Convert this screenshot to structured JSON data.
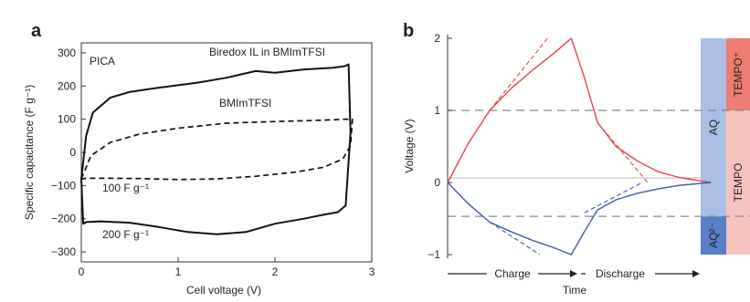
{
  "chart_data": [
    {
      "panel": "a",
      "type": "line",
      "xlabel": "Cell voltage (V)",
      "ylabel": "Specific capacitance (F g⁻¹)",
      "xlim": [
        0,
        3
      ],
      "ylim": [
        -330,
        330
      ],
      "xticks": [
        "0",
        "1",
        "2",
        "3"
      ],
      "yticks": [
        "300",
        "200",
        "100",
        "0",
        "−100",
        "−200",
        "−300"
      ],
      "yticks_values": [
        300,
        200,
        100,
        0,
        -100,
        -200,
        -300
      ],
      "annotations": [
        "PICA",
        "Biredox IL in BMImTFSI",
        "BMImTFSI",
        "100 F g⁻¹",
        "200 F g⁻¹"
      ],
      "series": [
        {
          "name": "Biredox IL in BMImTFSI",
          "style": "solid",
          "x": [
            0.0,
            0.05,
            0.12,
            0.3,
            0.5,
            0.8,
            1.2,
            1.5,
            1.8,
            2.0,
            2.3,
            2.6,
            2.72,
            2.76,
            2.78,
            2.73,
            2.65,
            2.5,
            2.3,
            2.0,
            1.7,
            1.4,
            1.1,
            0.8,
            0.5,
            0.2,
            0.05,
            0.02,
            0.0
          ],
          "y": [
            -80,
            50,
            120,
            165,
            182,
            195,
            210,
            225,
            245,
            240,
            250,
            255,
            260,
            265,
            60,
            -160,
            -180,
            -188,
            -200,
            -215,
            -240,
            -247,
            -240,
            -225,
            -212,
            -208,
            -210,
            -215,
            -80
          ]
        },
        {
          "name": "BMImTFSI",
          "style": "dashed",
          "x": [
            0.0,
            0.1,
            0.3,
            0.6,
            1.0,
            1.5,
            2.0,
            2.5,
            2.75,
            2.8,
            2.78,
            2.7,
            2.5,
            2.2,
            1.8,
            1.4,
            1.0,
            0.6,
            0.3,
            0.05,
            0.0
          ],
          "y": [
            -80,
            -10,
            30,
            55,
            73,
            88,
            93,
            97,
            100,
            100,
            20,
            -20,
            -45,
            -60,
            -72,
            -80,
            -82,
            -79,
            -78,
            -78,
            -80
          ]
        }
      ]
    },
    {
      "panel": "b",
      "type": "line",
      "xlabel": "Time",
      "ylabel": "Voltage (V)",
      "ylim": [
        -1.05,
        2.05
      ],
      "yticks": [
        "2",
        "1",
        "0",
        "−1"
      ],
      "yticks_values": [
        2,
        1,
        0,
        -1
      ],
      "phase_labels": [
        "Charge",
        "Discharge"
      ],
      "t": [
        0,
        0.08,
        0.16,
        0.24,
        0.32,
        0.4,
        0.47,
        0.52,
        0.57,
        0.64,
        0.72,
        0.8,
        0.88,
        1.0
      ],
      "series": [
        {
          "name": "positive",
          "color": "#e8424e",
          "style": "solid",
          "y": [
            0,
            0.55,
            1.0,
            1.3,
            1.55,
            1.78,
            2.0,
            1.45,
            0.83,
            0.5,
            0.3,
            0.15,
            0.07,
            0
          ]
        },
        {
          "name": "negative",
          "color": "#3f5ba9",
          "style": "solid",
          "y": [
            0,
            -0.3,
            -0.55,
            -0.68,
            -0.8,
            -0.9,
            -1.0,
            -0.68,
            -0.38,
            -0.24,
            -0.15,
            -0.09,
            -0.04,
            0
          ]
        },
        {
          "name": "positive-dashed-charge",
          "color": "#e8424e",
          "style": "dashed",
          "t": [
            0.16,
            0.38
          ],
          "y": [
            1.0,
            2.0
          ]
        },
        {
          "name": "positive-dashed-discharge",
          "color": "#e8424e",
          "style": "dashed",
          "t": [
            0.57,
            0.76
          ],
          "y": [
            0.83,
            0.0
          ]
        },
        {
          "name": "negative-dashed-charge",
          "color": "#3f5ba9",
          "style": "dashed",
          "t": [
            0.16,
            0.35
          ],
          "y": [
            -0.55,
            -1.0
          ]
        },
        {
          "name": "negative-dashed-discharge",
          "color": "#3f5ba9",
          "style": "dashed",
          "t": [
            0.52,
            0.74
          ],
          "y": [
            -0.42,
            0.0
          ]
        }
      ],
      "reference_lines": [
        1.0,
        -0.47
      ],
      "redox_bands": [
        {
          "label": "AQ",
          "y_range": [
            -0.47,
            2.0
          ],
          "color": "#a9bfe4"
        },
        {
          "label": "AQ²⁻",
          "y_range": [
            -1.0,
            -0.47
          ],
          "color": "#5a7fc7"
        },
        {
          "label": "TEMPO⁺",
          "y_range": [
            1.0,
            2.0
          ],
          "color": "#ee7c72"
        },
        {
          "label": "TEMPO",
          "y_range": [
            -1.0,
            1.0
          ],
          "color": "#f7c4bd"
        }
      ]
    }
  ],
  "panels": {
    "a_label": "a",
    "b_label": "b"
  }
}
